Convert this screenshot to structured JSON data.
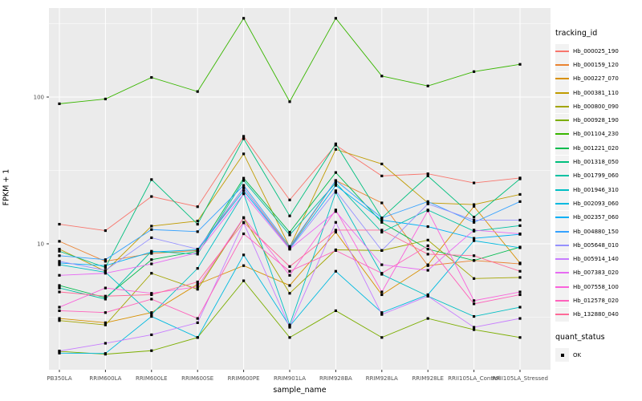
{
  "figure": {
    "background": "#FFFFFF",
    "panel_background": "#EBEBEB",
    "gridline_color": "#FFFFFF",
    "tick_color": "#333333",
    "tick_label_color": "#4D4D4D",
    "point_color": "#000000"
  },
  "chart_data": {
    "type": "line",
    "title": "",
    "xlabel": "sample_name",
    "ylabel": "FPKM + 1",
    "y_scale": "log10",
    "y_tick_labels": [
      "100",
      "10"
    ],
    "y_ticks": [
      100,
      10
    ],
    "y_minor_ticks": [
      316.2,
      31.62,
      3.162
    ],
    "ylim": [
      1.26,
      420
    ],
    "grid": true,
    "legend_position": "right",
    "categories": [
      "PB350LA",
      "RRIM600LA",
      "RRIM600LE",
      "RRIM600SE",
      "RRIM600PE",
      "RRIM901LA",
      "RRIM928BA",
      "RRIM928LA",
      "RRIM928LE",
      "RRII105LA_Control",
      "RRII105LA_Stressed"
    ],
    "series": [
      {
        "name": "Hb_000025_190",
        "color": "#F8766D",
        "values": [
          13.6,
          12.3,
          21.0,
          17.9,
          54.0,
          19.9,
          47.0,
          29.0,
          30.0,
          26.0,
          28.1
        ]
      },
      {
        "name": "Hb_000159_120",
        "color": "#EA8331",
        "values": [
          10.4,
          7.6,
          8.6,
          9.0,
          24.0,
          9.4,
          27.0,
          19.0,
          7.1,
          7.7,
          7.3
        ]
      },
      {
        "name": "Hb_000227_070",
        "color": "#D89000",
        "values": [
          3.1,
          2.9,
          3.4,
          5.3,
          7.1,
          5.2,
          12.0,
          4.5,
          7.2,
          18.0,
          7.4
        ]
      },
      {
        "name": "Hb_000381_110",
        "color": "#C09B00",
        "values": [
          9.2,
          6.5,
          13.2,
          14.3,
          41.0,
          9.5,
          44.0,
          35.0,
          19.0,
          18.5,
          21.7
        ]
      },
      {
        "name": "Hb_000800_090",
        "color": "#A3A500",
        "values": [
          3.0,
          2.8,
          6.3,
          4.9,
          15.0,
          4.6,
          9.1,
          9.0,
          10.6,
          5.8,
          5.9
        ]
      },
      {
        "name": "Hb_000928_190",
        "color": "#7CAE00",
        "values": [
          1.85,
          1.77,
          1.87,
          2.3,
          5.6,
          2.3,
          3.5,
          2.3,
          3.1,
          2.6,
          2.3
        ]
      },
      {
        "name": "Hb_001104_230",
        "color": "#39B600",
        "values": [
          90,
          97,
          136,
          109,
          344,
          93,
          344,
          139,
          119,
          149,
          167
        ]
      },
      {
        "name": "Hb_001221_020",
        "color": "#00BB4E",
        "values": [
          5.2,
          4.3,
          7.8,
          8.9,
          28.0,
          12.0,
          30.6,
          14.0,
          9.2,
          7.7,
          9.5
        ]
      },
      {
        "name": "Hb_001318_050",
        "color": "#00BF7D",
        "values": [
          8.9,
          6.9,
          27.4,
          13.6,
          52.0,
          15.5,
          48.0,
          15.0,
          29.0,
          15.2,
          27.7
        ]
      },
      {
        "name": "Hb_001799_060",
        "color": "#00C1A3",
        "values": [
          5.0,
          4.2,
          8.9,
          8.5,
          27.0,
          11.5,
          26.0,
          12.0,
          17.0,
          12.2,
          13.3
        ]
      },
      {
        "name": "Hb_001946_310",
        "color": "#00BFC4",
        "values": [
          7.2,
          6.4,
          3.3,
          6.8,
          22.0,
          2.8,
          22.4,
          6.2,
          4.4,
          3.2,
          3.7
        ]
      },
      {
        "name": "Hb_002093_060",
        "color": "#00BAE0",
        "values": [
          1.8,
          1.79,
          3.2,
          2.3,
          8.4,
          2.75,
          6.5,
          3.4,
          4.5,
          10.5,
          9.4
        ]
      },
      {
        "name": "Hb_002357_060",
        "color": "#00B0F6",
        "values": [
          7.4,
          7.1,
          8.8,
          9.1,
          23.0,
          9.3,
          25.0,
          14.5,
          13.1,
          10.9,
          11.6
        ]
      },
      {
        "name": "Hb_004880_150",
        "color": "#35A2FF",
        "values": [
          8.3,
          7.8,
          12.5,
          12.1,
          25.0,
          9.6,
          27.0,
          15.0,
          19.4,
          14.0,
          19.4
        ]
      },
      {
        "name": "Hb_005648_010",
        "color": "#9590FF",
        "values": [
          7.6,
          6.6,
          11.0,
          9.2,
          24.0,
          9.2,
          23.0,
          9.0,
          18.7,
          14.5,
          14.5
        ]
      },
      {
        "name": "Hb_005914_140",
        "color": "#C77CFF",
        "values": [
          1.86,
          2.1,
          2.4,
          2.9,
          13.9,
          2.7,
          14.0,
          3.3,
          4.4,
          2.7,
          3.1
        ]
      },
      {
        "name": "Hb_007383_020",
        "color": "#E76BF3",
        "values": [
          6.1,
          6.3,
          7.3,
          8.7,
          21.9,
          9.2,
          16.6,
          7.2,
          6.6,
          12.4,
          11.7
        ]
      },
      {
        "name": "Hb_007558_100",
        "color": "#FA62DB",
        "values": [
          3.7,
          5.0,
          4.6,
          5.1,
          15.1,
          6.1,
          17.0,
          4.7,
          16.8,
          4.1,
          4.7
        ]
      },
      {
        "name": "Hb_012578_020",
        "color": "#FF62BC",
        "values": [
          3.5,
          3.4,
          4.2,
          3.1,
          11.7,
          6.5,
          9.0,
          6.3,
          9.7,
          3.9,
          4.5
        ]
      },
      {
        "name": "Hb_132880_040",
        "color": "#FF6A98",
        "values": [
          4.7,
          4.4,
          4.5,
          5.5,
          14.0,
          7.0,
          12.4,
          12.4,
          8.5,
          8.3,
          6.5
        ]
      }
    ],
    "legend": {
      "title": "tracking_id"
    },
    "quant_legend": {
      "title": "quant_status",
      "items": [
        "OK"
      ]
    }
  }
}
